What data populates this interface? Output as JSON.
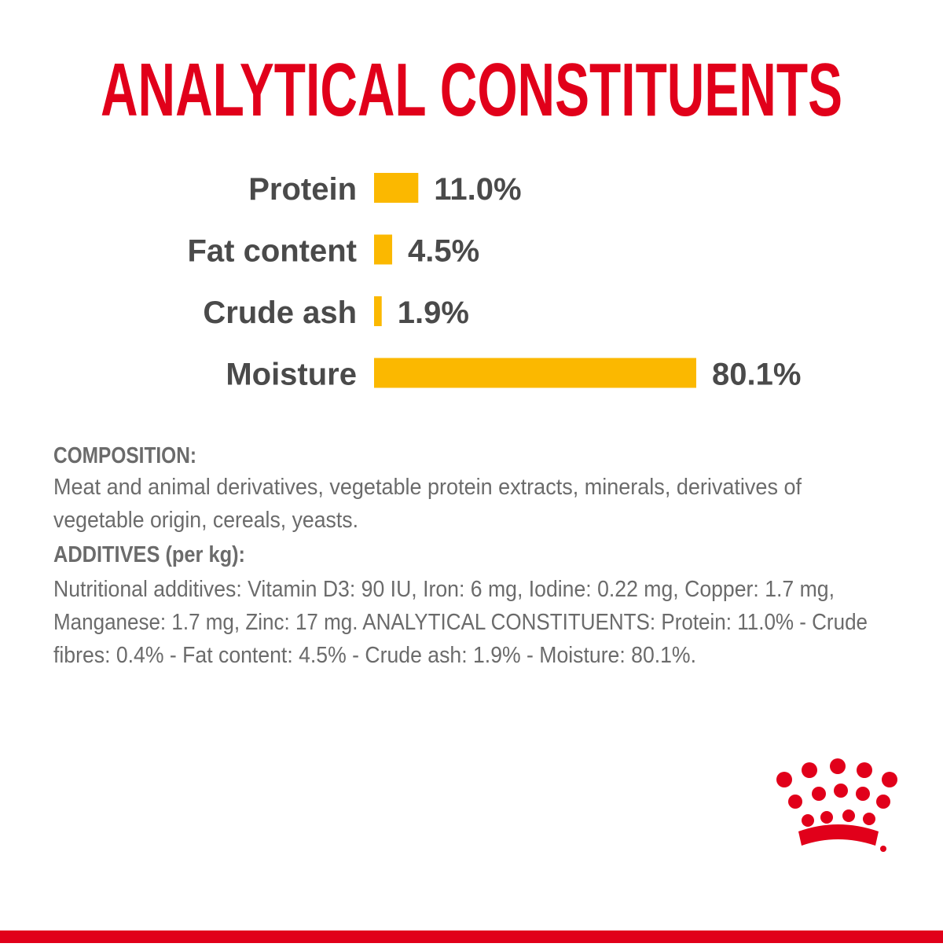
{
  "chart_data": {
    "type": "bar",
    "orientation": "horizontal",
    "title": "ANALYTICAL CONSTITUENTS",
    "categories": [
      "Protein",
      "Fat content",
      "Crude ash",
      "Moisture"
    ],
    "values": [
      11.0,
      4.5,
      1.9,
      80.1
    ],
    "value_labels": [
      "11.0%",
      "4.5%",
      "1.9%",
      "80.1%"
    ],
    "color": "#fbb800"
  },
  "composition": {
    "heading": "COMPOSITION:",
    "lines": [
      "Meat and animal derivatives, vegetable protein extracts, minerals, derivatives of",
      "vegetable origin, cereals, yeasts."
    ]
  },
  "additives": {
    "heading": "ADDITIVES (per kg):",
    "lines": [
      "Nutritional additives: Vitamin D3: 90 IU, Iron: 6 mg, Iodine: 0.22 mg, Copper: 1.7 mg,",
      "Manganese: 1.7 mg, Zinc: 17 mg. ANALYTICAL CONSTITUENTS: Protein: 11.0% - Crude",
      "fibres: 0.4% - Fat content: 4.5% - Crude ash: 1.9% - Moisture: 80.1%."
    ]
  }
}
